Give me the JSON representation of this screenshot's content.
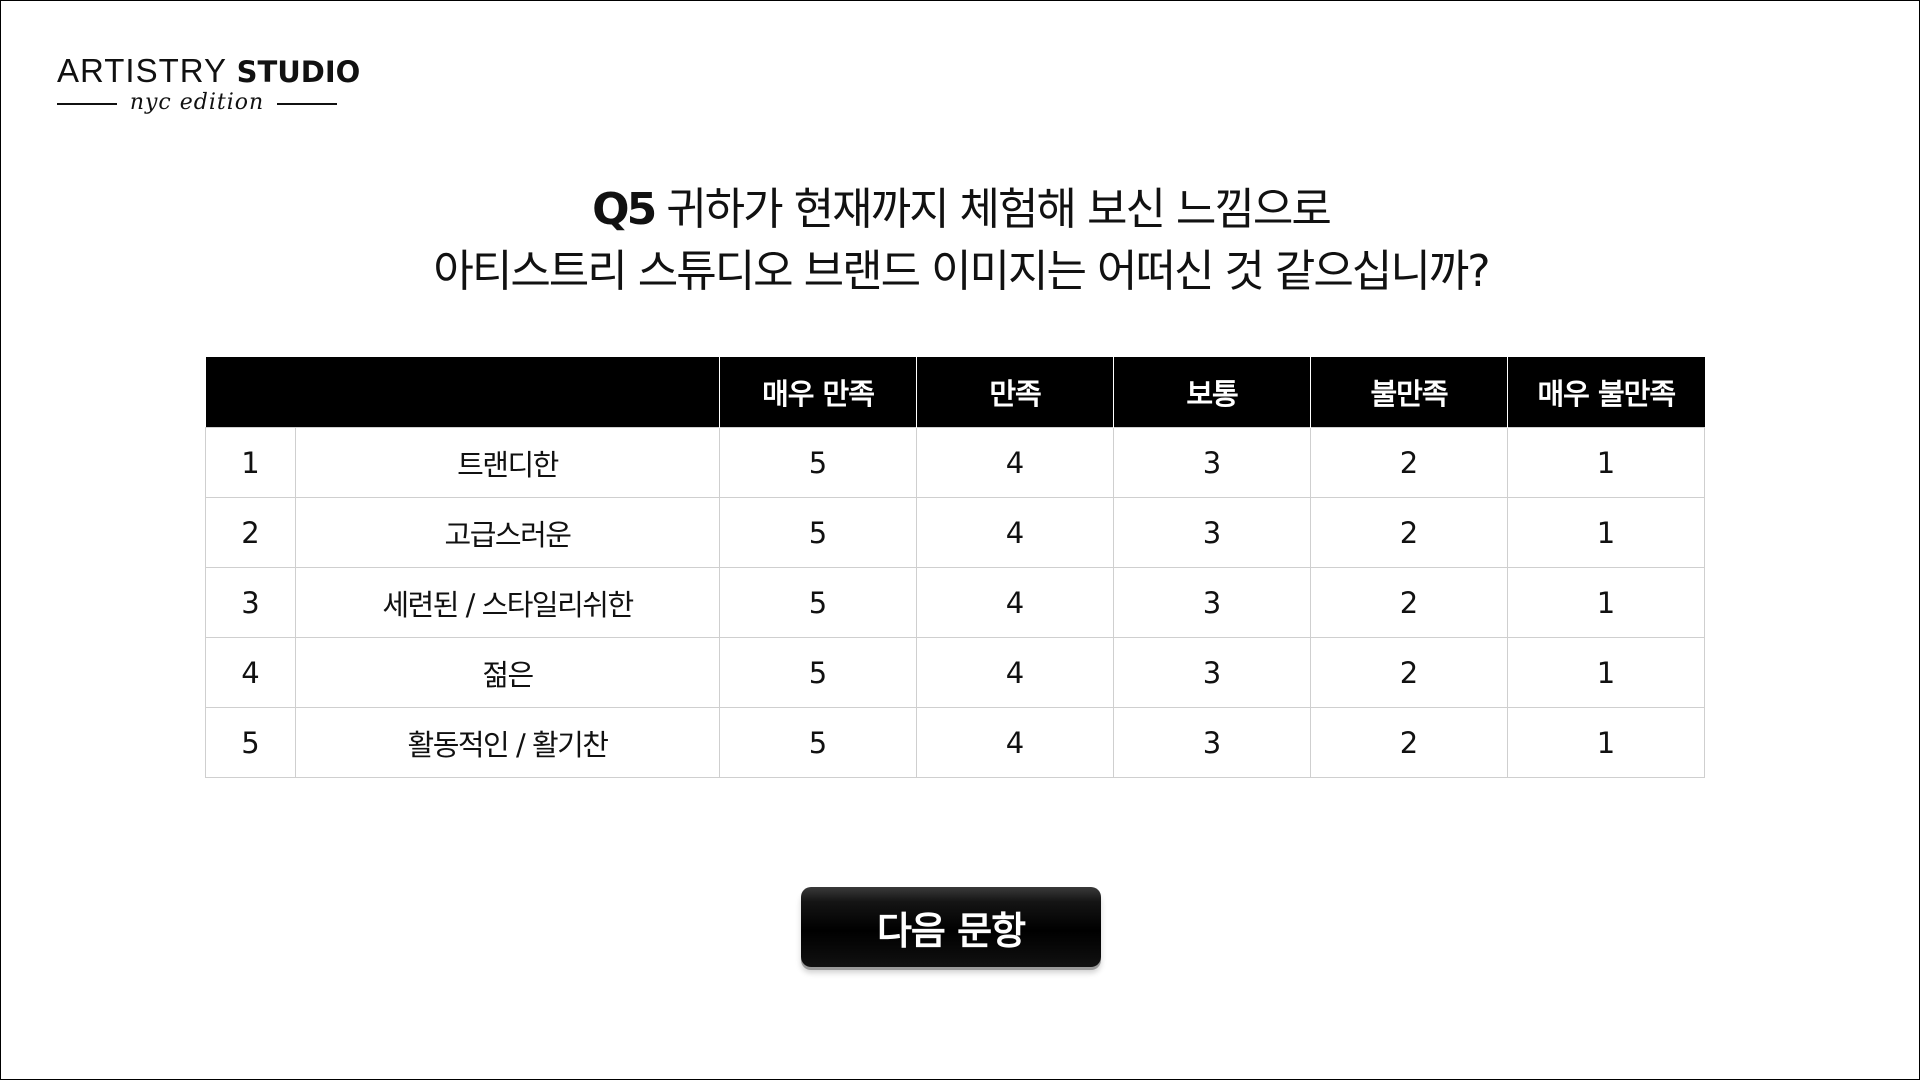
{
  "logo": {
    "brand_light": "ARTISTRY",
    "brand_bold": "STUDIO",
    "edition": "nyc edition"
  },
  "question": {
    "number": "Q5",
    "line1": "귀하가 현재까지 체험해 보신 느낌으로",
    "line2": "아티스트리 스튜디오 브랜드 이미지는 어떠신 것 같으십니까?"
  },
  "table": {
    "headers": [
      "매우 만족",
      "만족",
      "보통",
      "불만족",
      "매우 불만족"
    ],
    "rows": [
      {
        "num": "1",
        "item": "트랜디한",
        "scores": [
          "5",
          "4",
          "3",
          "2",
          "1"
        ]
      },
      {
        "num": "2",
        "item": "고급스러운",
        "scores": [
          "5",
          "4",
          "3",
          "2",
          "1"
        ]
      },
      {
        "num": "3",
        "item": "세련된 / 스타일리쉬한",
        "scores": [
          "5",
          "4",
          "3",
          "2",
          "1"
        ]
      },
      {
        "num": "4",
        "item": "젊은",
        "scores": [
          "5",
          "4",
          "3",
          "2",
          "1"
        ]
      },
      {
        "num": "5",
        "item": "활동적인 / 활기찬",
        "scores": [
          "5",
          "4",
          "3",
          "2",
          "1"
        ]
      }
    ]
  },
  "next_button": {
    "label": "다음 문항"
  },
  "colors": {
    "header_bg": "#000000",
    "header_text": "#ffffff",
    "grid_line": "#cfcfcf",
    "button_bg": "#000000"
  }
}
